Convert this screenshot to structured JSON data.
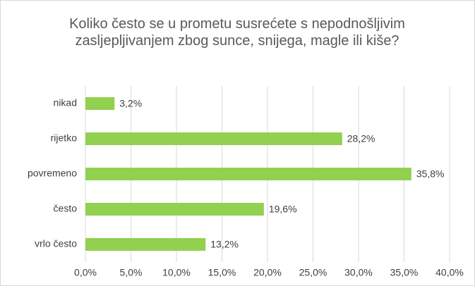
{
  "chart_data": {
    "type": "barh",
    "title": "Koliko često se u prometu susrećete s nepodnošljivim zasljepljivanjem zbog sunce, snijega, magle ili kiše?",
    "categories": [
      "nikad",
      "rijetko",
      "povremeno",
      "često",
      "vrlo često"
    ],
    "values": [
      3.2,
      28.2,
      35.8,
      19.6,
      13.2
    ],
    "value_labels": [
      "3,2%",
      "28,2%",
      "35,8%",
      "19,6%",
      "13,2%"
    ],
    "color": "#92d050",
    "xlim": [
      0,
      40
    ],
    "xticks": [
      {
        "value": 0,
        "label": "0,0%"
      },
      {
        "value": 5,
        "label": "5,0%"
      },
      {
        "value": 10,
        "label": "10,0%"
      },
      {
        "value": 15,
        "label": "15,0%"
      },
      {
        "value": 20,
        "label": "20,0%"
      },
      {
        "value": 25,
        "label": "25,0%"
      },
      {
        "value": 30,
        "label": "30,0%"
      },
      {
        "value": 35,
        "label": "35,0%"
      },
      {
        "value": 40,
        "label": "40,0%"
      }
    ],
    "grid": true
  }
}
